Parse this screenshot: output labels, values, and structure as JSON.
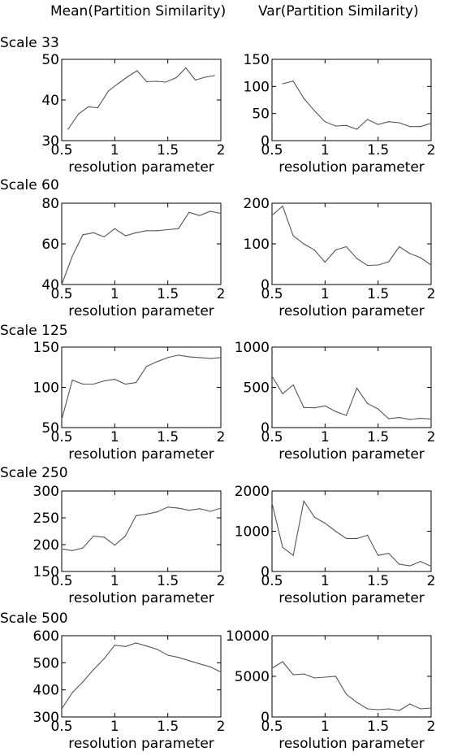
{
  "column_titles": [
    "Mean(Partition Similarity)",
    "Var(Partition Similarity)"
  ],
  "scale_labels": [
    "Scale 33",
    "Scale 60",
    "Scale 125",
    "Scale 250",
    "Scale 500"
  ],
  "line_color": "#555555",
  "chart_data": [
    {
      "type": "line",
      "xlabel": "resolution parameter",
      "xlim": [
        0.5,
        2
      ],
      "xticks": [
        0.5,
        1,
        1.5,
        2
      ],
      "xtick_labels": [
        "0.5",
        "1",
        "1.5",
        "2"
      ],
      "ylim": [
        30,
        50
      ],
      "yticks": [
        30,
        40,
        50
      ],
      "x": [
        0.56,
        0.66,
        0.75,
        0.84,
        0.94,
        1.03,
        1.12,
        1.21,
        1.3,
        1.39,
        1.48,
        1.58,
        1.67,
        1.76,
        1.85,
        1.94
      ],
      "values": [
        32.8,
        36.6,
        38.3,
        38.1,
        42.2,
        44.0,
        45.7,
        47.2,
        44.5,
        44.6,
        44.4,
        45.5,
        47.9,
        44.9,
        45.6,
        46.0
      ]
    },
    {
      "type": "line",
      "xlabel": "resolution parameter",
      "xlim": [
        0.5,
        2
      ],
      "xticks": [
        0.5,
        1,
        1.5,
        2
      ],
      "xtick_labels": [
        "0.5",
        "1",
        "1.5",
        "2"
      ],
      "ylim": [
        0,
        150
      ],
      "yticks": [
        0,
        50,
        100,
        150
      ],
      "x": [
        0.6,
        0.7,
        0.8,
        0.9,
        1.0,
        1.1,
        1.2,
        1.3,
        1.4,
        1.5,
        1.6,
        1.7,
        1.8,
        1.9,
        2.0
      ],
      "values": [
        105,
        110,
        78,
        55,
        35,
        27,
        28,
        21,
        39,
        30,
        35,
        33,
        26,
        26,
        32
      ]
    },
    {
      "type": "line",
      "xlabel": "resolution parameter",
      "xlim": [
        0.5,
        2
      ],
      "xticks": [
        0.5,
        1,
        1.5,
        2
      ],
      "xtick_labels": [
        "0.5",
        "1",
        "1.5",
        "2"
      ],
      "ylim": [
        40,
        80
      ],
      "yticks": [
        40,
        60,
        80
      ],
      "x": [
        0.5,
        0.6,
        0.7,
        0.8,
        0.9,
        1.0,
        1.1,
        1.2,
        1.3,
        1.4,
        1.5,
        1.6,
        1.7,
        1.8,
        1.9,
        2.0
      ],
      "values": [
        40,
        54,
        64.5,
        65.5,
        63.5,
        67.5,
        64,
        65.5,
        66.5,
        66.5,
        67,
        67.5,
        75.5,
        74,
        76,
        75
      ]
    },
    {
      "type": "line",
      "xlabel": "resolution parameter",
      "xlim": [
        0.5,
        2
      ],
      "xticks": [
        0.5,
        1,
        1.5,
        2
      ],
      "xtick_labels": [
        "0.5",
        "1",
        "1.5",
        "2"
      ],
      "ylim": [
        0,
        200
      ],
      "yticks": [
        0,
        100,
        200
      ],
      "x": [
        0.5,
        0.6,
        0.7,
        0.8,
        0.9,
        1.0,
        1.1,
        1.2,
        1.3,
        1.4,
        1.5,
        1.6,
        1.7,
        1.8,
        1.9,
        2.0
      ],
      "values": [
        170,
        193,
        120,
        100,
        85,
        55,
        85,
        93,
        64,
        47,
        48,
        56,
        93,
        76,
        66,
        48
      ]
    },
    {
      "type": "line",
      "xlabel": "resolution parameter",
      "xlim": [
        0.5,
        2
      ],
      "xticks": [
        0.5,
        1,
        1.5,
        2
      ],
      "xtick_labels": [
        "0.5",
        "1",
        "1.5",
        "2"
      ],
      "ylim": [
        50,
        150
      ],
      "yticks": [
        50,
        100,
        150
      ],
      "x": [
        0.5,
        0.6,
        0.7,
        0.8,
        0.9,
        1.0,
        1.1,
        1.2,
        1.3,
        1.4,
        1.5,
        1.6,
        1.7,
        1.8,
        1.9,
        2.0
      ],
      "values": [
        60,
        109,
        104,
        104,
        108,
        110,
        104,
        106,
        126,
        132,
        137,
        140,
        138,
        137,
        136,
        137
      ]
    },
    {
      "type": "line",
      "xlabel": "resolution parameter",
      "xlim": [
        0.5,
        2
      ],
      "xticks": [
        0.5,
        1,
        1.5,
        2
      ],
      "xtick_labels": [
        "0.5",
        "1",
        "1.5",
        "2"
      ],
      "ylim": [
        0,
        1000
      ],
      "yticks": [
        0,
        500,
        1000
      ],
      "x": [
        0.5,
        0.6,
        0.7,
        0.8,
        0.9,
        1.0,
        1.1,
        1.2,
        1.3,
        1.4,
        1.5,
        1.6,
        1.7,
        1.8,
        1.9,
        2.0
      ],
      "values": [
        640,
        420,
        530,
        250,
        245,
        270,
        200,
        150,
        490,
        300,
        230,
        110,
        125,
        100,
        115,
        105
      ]
    },
    {
      "type": "line",
      "xlabel": "resolution parameter",
      "xlim": [
        0.5,
        2
      ],
      "xticks": [
        0.5,
        1,
        1.5,
        2
      ],
      "xtick_labels": [
        "0.5",
        "1",
        "1.5",
        "2"
      ],
      "ylim": [
        150,
        300
      ],
      "yticks": [
        150,
        200,
        250,
        300
      ],
      "x": [
        0.5,
        0.6,
        0.7,
        0.8,
        0.9,
        1.0,
        1.1,
        1.2,
        1.3,
        1.4,
        1.5,
        1.6,
        1.7,
        1.8,
        1.9,
        2.0
      ],
      "values": [
        192,
        189,
        194,
        216,
        214,
        199,
        216,
        254,
        257,
        261,
        270,
        268,
        264,
        267,
        262,
        268
      ]
    },
    {
      "type": "line",
      "xlabel": "resolution parameter",
      "xlim": [
        0.5,
        2
      ],
      "xticks": [
        0.5,
        1,
        1.5,
        2
      ],
      "xtick_labels": [
        "0.5",
        "1",
        "1.5",
        "2"
      ],
      "ylim": [
        0,
        2000
      ],
      "yticks": [
        0,
        1000,
        2000
      ],
      "x": [
        0.5,
        0.6,
        0.7,
        0.8,
        0.9,
        1.0,
        1.1,
        1.2,
        1.3,
        1.4,
        1.5,
        1.6,
        1.7,
        1.8,
        1.9,
        2.0
      ],
      "values": [
        1700,
        600,
        400,
        1750,
        1350,
        1200,
        1000,
        820,
        820,
        900,
        400,
        450,
        180,
        140,
        250,
        130
      ]
    },
    {
      "type": "line",
      "xlabel": "resolution parameter",
      "xlim": [
        0.5,
        2
      ],
      "xticks": [
        0.5,
        1,
        1.5,
        2
      ],
      "xtick_labels": [
        "0.5",
        "1",
        "1.5",
        "2"
      ],
      "ylim": [
        300,
        600
      ],
      "yticks": [
        300,
        400,
        500,
        600
      ],
      "x": [
        0.5,
        0.6,
        0.7,
        0.8,
        0.9,
        1.0,
        1.1,
        1.2,
        1.3,
        1.4,
        1.5,
        1.6,
        1.7,
        1.8,
        1.9,
        2.0
      ],
      "values": [
        330,
        390,
        430,
        475,
        515,
        565,
        560,
        573,
        562,
        550,
        528,
        520,
        508,
        496,
        485,
        466
      ]
    },
    {
      "type": "line",
      "xlabel": "resolution parameter",
      "xlim": [
        0.5,
        2
      ],
      "xticks": [
        0.5,
        1,
        1.5,
        2
      ],
      "xtick_labels": [
        "0.5",
        "1",
        "1.5",
        "2"
      ],
      "ylim": [
        0,
        10000
      ],
      "yticks": [
        0,
        5000,
        10000
      ],
      "x": [
        0.5,
        0.6,
        0.7,
        0.8,
        0.9,
        1.0,
        1.1,
        1.2,
        1.3,
        1.4,
        1.5,
        1.6,
        1.7,
        1.8,
        1.9,
        2.0
      ],
      "values": [
        6000,
        6800,
        5200,
        5300,
        4800,
        4900,
        5000,
        2800,
        1800,
        1000,
        900,
        1000,
        800,
        1600,
        1000,
        1100
      ]
    }
  ]
}
